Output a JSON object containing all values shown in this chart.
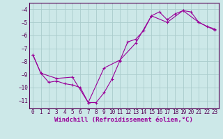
{
  "line1_x": [
    0,
    1,
    2,
    3,
    4,
    5,
    6,
    7,
    8,
    9,
    10,
    11,
    12,
    13,
    14,
    15,
    16,
    17,
    18,
    19,
    20,
    21,
    22,
    23
  ],
  "line1_y": [
    -7.5,
    -8.9,
    -9.6,
    -9.5,
    -9.7,
    -9.8,
    -10.0,
    -11.15,
    -11.15,
    -10.4,
    -9.35,
    -7.95,
    -6.5,
    -6.3,
    -5.65,
    -4.5,
    -4.2,
    -4.8,
    -4.35,
    -4.1,
    -4.2,
    -5.0,
    -5.3,
    -5.5
  ],
  "line2_x": [
    0,
    1,
    3,
    5,
    7,
    9,
    11,
    13,
    15,
    17,
    19,
    21,
    23
  ],
  "line2_y": [
    -7.5,
    -8.9,
    -9.3,
    -9.2,
    -11.15,
    -8.5,
    -7.9,
    -6.6,
    -4.5,
    -5.0,
    -4.1,
    -5.0,
    -5.6
  ],
  "line_color": "#990099",
  "bg_color": "#cce8e8",
  "grid_color": "#aacccc",
  "xlabel": "Windchill (Refroidissement éolien,°C)",
  "xlim": [
    -0.5,
    23.5
  ],
  "ylim": [
    -11.6,
    -3.5
  ],
  "yticks": [
    -11,
    -10,
    -9,
    -8,
    -7,
    -6,
    -5,
    -4
  ],
  "xticks": [
    0,
    1,
    2,
    3,
    4,
    5,
    6,
    7,
    8,
    9,
    10,
    11,
    12,
    13,
    14,
    15,
    16,
    17,
    18,
    19,
    20,
    21,
    22,
    23
  ],
  "tick_fontsize": 5.5,
  "xlabel_fontsize": 6.5
}
